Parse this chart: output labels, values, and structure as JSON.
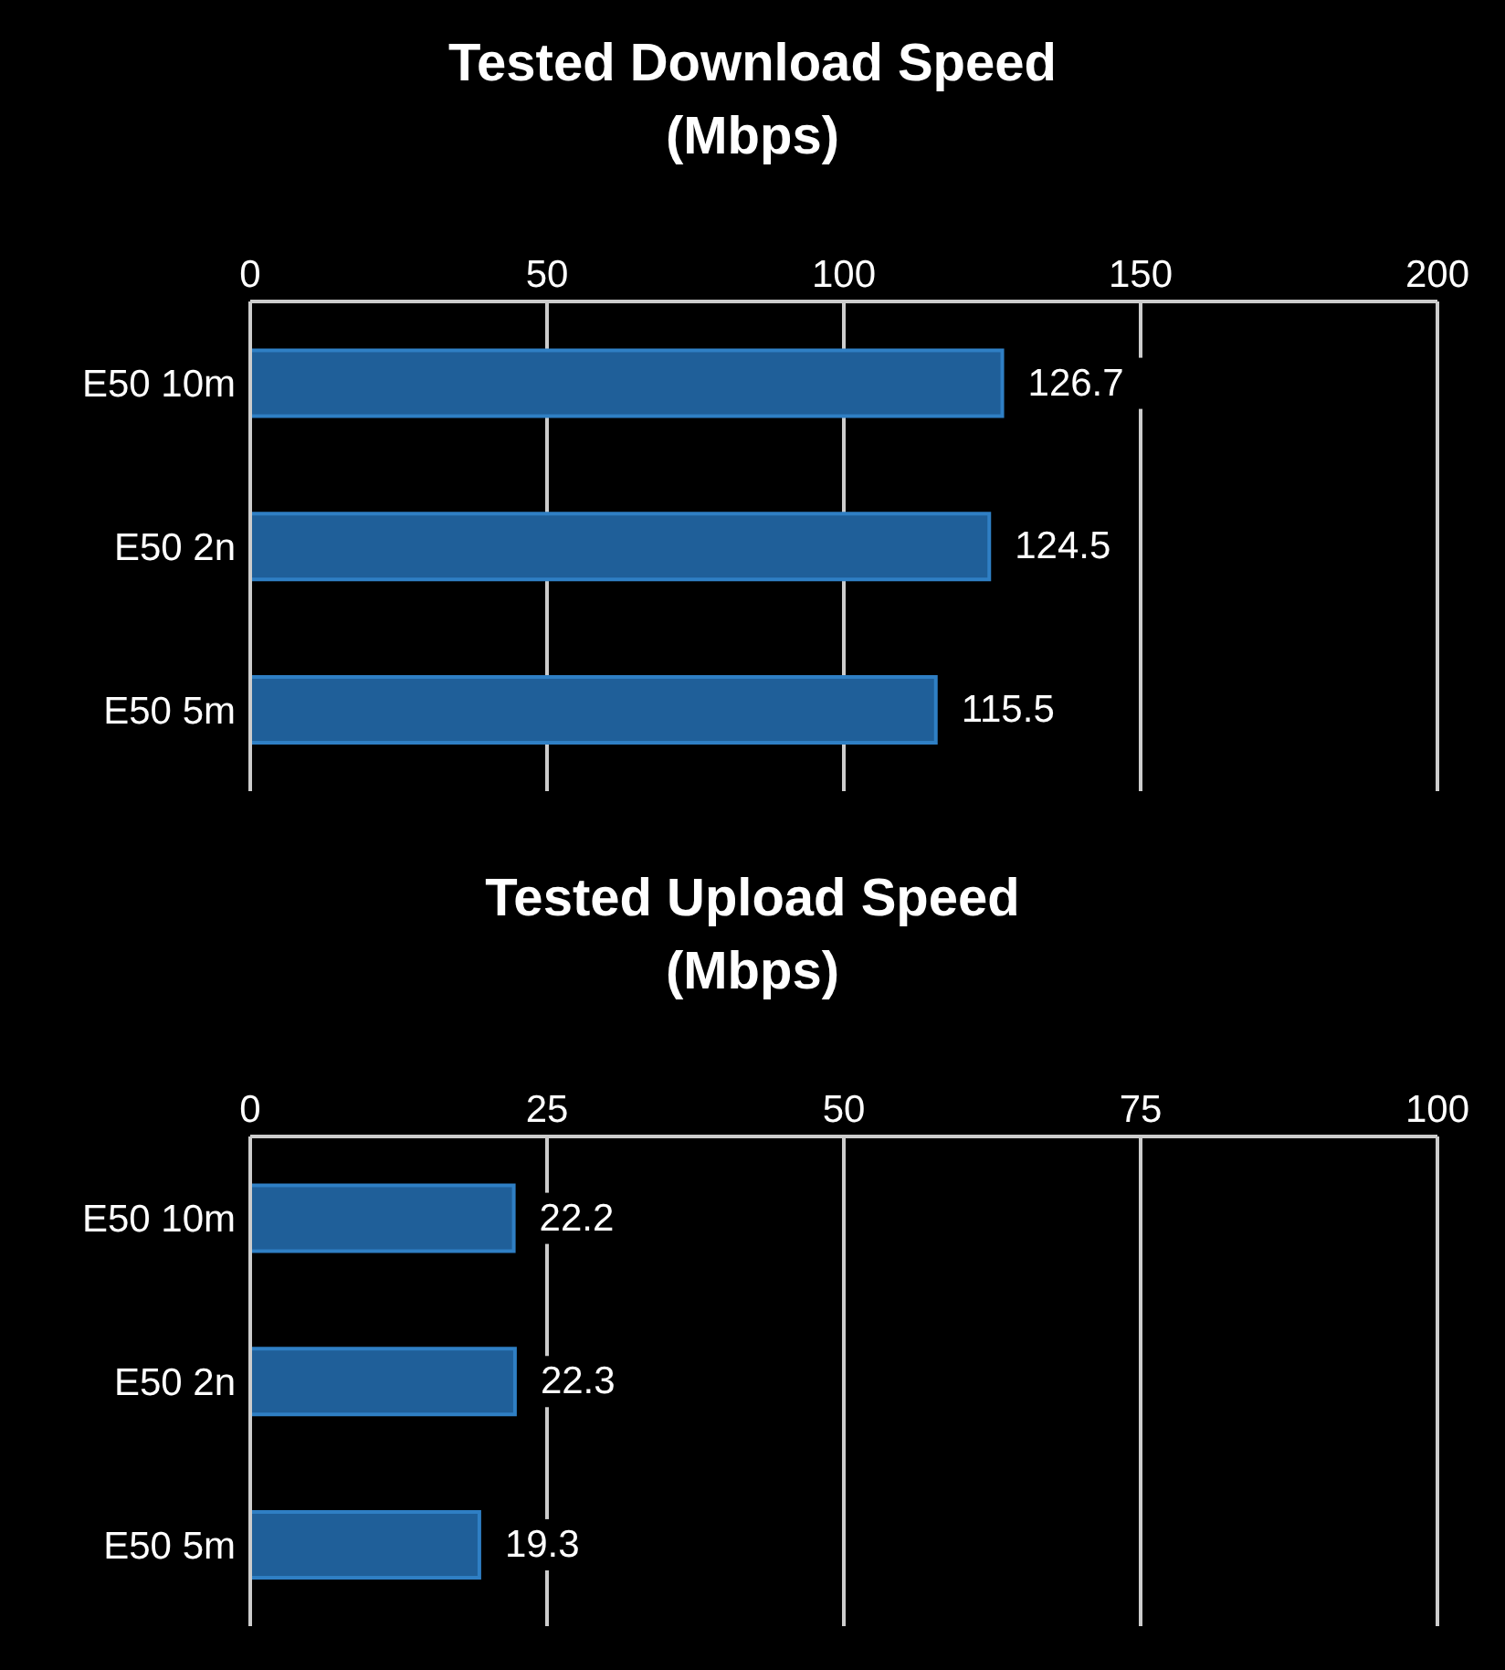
{
  "chart_data": [
    {
      "type": "bar",
      "orientation": "horizontal",
      "title": "Tested Download Speed\n(Mbps)",
      "categories": [
        "E50 10m",
        "E50 2n",
        "E50 5m"
      ],
      "values": [
        126.7,
        124.5,
        115.5
      ],
      "color": "#1f5f99",
      "xlim": [
        0,
        200
      ],
      "xticks": [
        0,
        50,
        100,
        150,
        200
      ],
      "grid": "x",
      "data_labels": true
    },
    {
      "type": "bar",
      "orientation": "horizontal",
      "title": "Tested Upload Speed\n(Mbps)",
      "categories": [
        "E50 10m",
        "E50 2n",
        "E50 5m"
      ],
      "values": [
        22.2,
        22.3,
        19.3
      ],
      "color": "#1f5f99",
      "xlim": [
        0,
        100
      ],
      "xticks": [
        0,
        25,
        50,
        75,
        100
      ],
      "grid": "x",
      "data_labels": true
    }
  ]
}
